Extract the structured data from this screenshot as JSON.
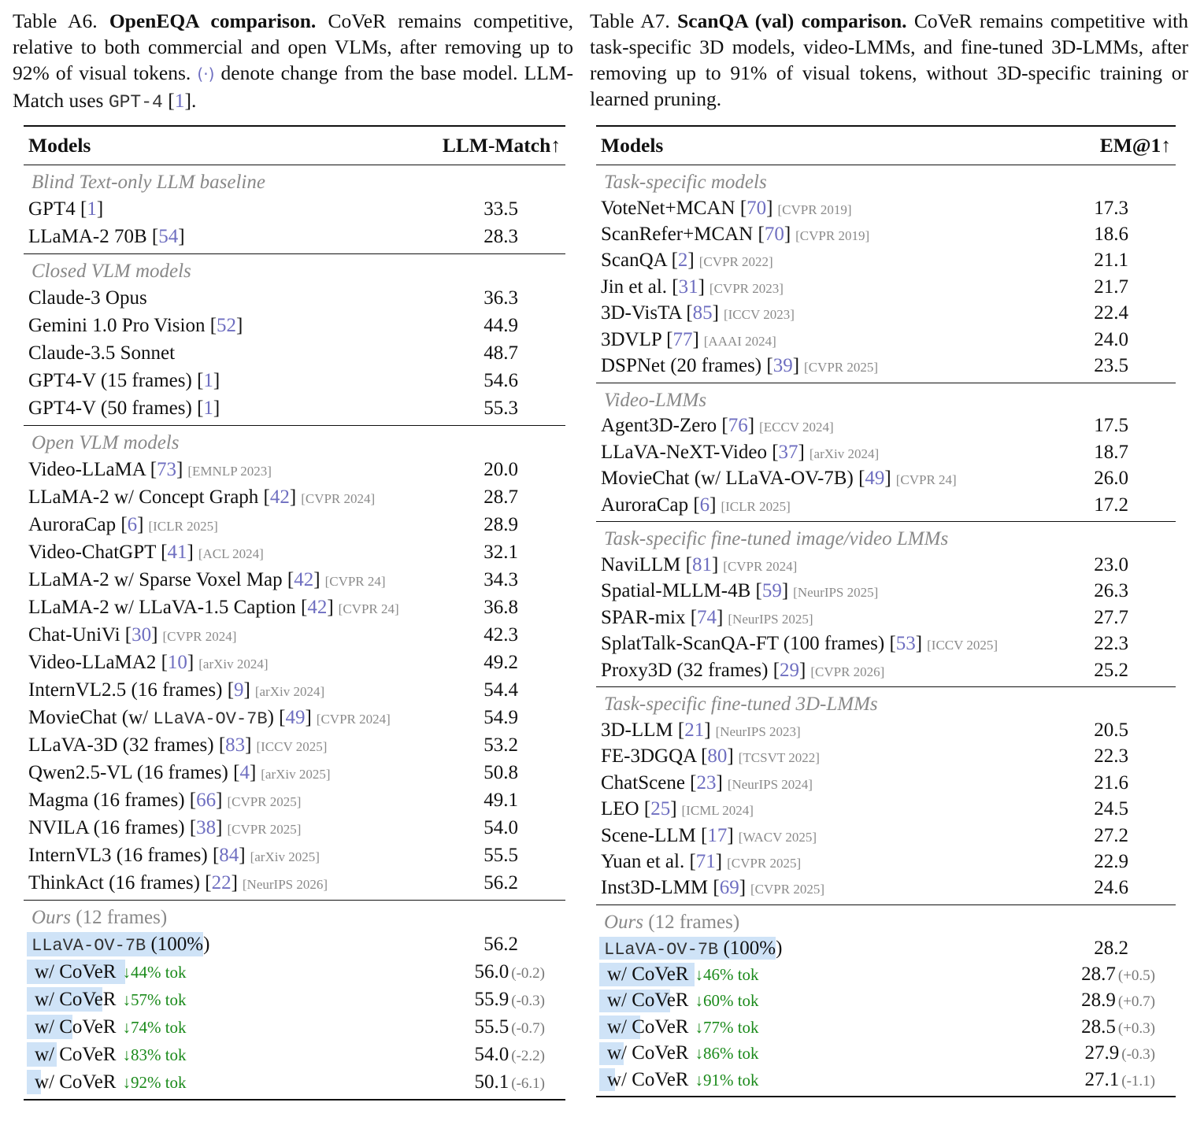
{
  "table_a6": {
    "caption": {
      "label": "Table A6.",
      "title": "OpenEQA comparison.",
      "text1": " CoVeR remains competitive, relative to both commercial and open VLMs, after removing up to 92% of visual tokens. ",
      "symbol": "(·)",
      "text2": " denote change from the base model. LLM-Match uses ",
      "mono": "GPT-4",
      "cite_open": " [",
      "cite": "1",
      "cite_close": "]."
    },
    "header": {
      "models": "Models",
      "metric": "LLM-Match↑"
    },
    "groups": [
      {
        "title": "Blind Text-only LLM baseline",
        "rows": [
          {
            "name": "GPT4 ",
            "cite": "1",
            "venue": "",
            "value": "33.5"
          },
          {
            "name": "LLaMA-2 70B ",
            "cite": "54",
            "venue": "",
            "value": "28.3"
          }
        ]
      },
      {
        "title": "Closed VLM models",
        "rows": [
          {
            "name": "Claude-3 Opus",
            "cite": "",
            "venue": "",
            "value": "36.3"
          },
          {
            "name": "Gemini 1.0 Pro Vision ",
            "cite": "52",
            "venue": "",
            "value": "44.9"
          },
          {
            "name": "Claude-3.5 Sonnet",
            "cite": "",
            "venue": "",
            "value": "48.7"
          },
          {
            "name": "GPT4-V (15 frames) ",
            "cite": "1",
            "venue": "",
            "value": "54.6"
          },
          {
            "name": "GPT4-V (50 frames) ",
            "cite": "1",
            "venue": "",
            "value": "55.3"
          }
        ]
      },
      {
        "title": "Open VLM models",
        "rows": [
          {
            "name": "Video-LLaMA ",
            "cite": "73",
            "venue": "[EMNLP 2023]",
            "value": "20.0"
          },
          {
            "name": "LLaMA-2 w/ Concept Graph ",
            "cite": "42",
            "venue": "[CVPR 2024]",
            "value": "28.7"
          },
          {
            "name": "AuroraCap ",
            "cite": "6",
            "venue": "[ICLR 2025]",
            "value": "28.9"
          },
          {
            "name": "Video-ChatGPT ",
            "cite": "41",
            "venue": "[ACL 2024]",
            "value": "32.1"
          },
          {
            "name": "LLaMA-2 w/ Sparse Voxel Map ",
            "cite": "42",
            "venue": "[CVPR 24]",
            "value": "34.3"
          },
          {
            "name": "LLaMA-2 w/ LLaVA-1.5 Caption ",
            "cite": "42",
            "venue": "[CVPR 24]",
            "value": "36.8"
          },
          {
            "name": "Chat-UniVi ",
            "cite": "30",
            "venue": "[CVPR 2024]",
            "value": "42.3"
          },
          {
            "name": "Video-LLaMA2 ",
            "cite": "10",
            "venue": "[arXiv 2024]",
            "value": "49.2"
          },
          {
            "name": "InternVL2.5 (16 frames) ",
            "cite": "9",
            "venue": "[arXiv 2024]",
            "value": "54.4"
          },
          {
            "name": "MovieChat (w/ ",
            "mono": "LLaVA-OV-7B",
            "name2": ") ",
            "cite": "49",
            "venue": "[CVPR 2024]",
            "value": "54.9"
          },
          {
            "name": "LLaVA-3D (32 frames) ",
            "cite": "83",
            "venue": "[ICCV 2025]",
            "value": "53.2"
          },
          {
            "name": "Qwen2.5-VL (16 frames) ",
            "cite": "4",
            "venue": "[arXiv 2025]",
            "value": "50.8"
          },
          {
            "name": "Magma (16 frames) ",
            "cite": "66",
            "venue": "[CVPR 2025]",
            "value": "49.1"
          },
          {
            "name": "NVILA (16 frames) ",
            "cite": "38",
            "venue": "[CVPR 2025]",
            "value": "54.0"
          },
          {
            "name": "InternVL3 (16 frames) ",
            "cite": "84",
            "venue": "[arXiv 2025]",
            "value": "55.5"
          },
          {
            "name": "ThinkAct (16 frames) ",
            "cite": "22",
            "venue": "[NeurIPS 2026]",
            "value": "56.2"
          }
        ]
      }
    ],
    "ours": {
      "title": "Ours",
      "subtitle": " (12 frames)",
      "base": {
        "mono": "LLaVA-OV-7B",
        "suffix": " (100%)",
        "value": "56.2",
        "retained": 1.0
      },
      "rows": [
        {
          "name": "w/ CoVeR",
          "tok": "↓44% tok",
          "value": "56.0",
          "delta": "(-0.2)",
          "retained": 0.56
        },
        {
          "name": "w/ CoVeR",
          "tok": "↓57% tok",
          "value": "55.9",
          "delta": "(-0.3)",
          "retained": 0.43
        },
        {
          "name": "w/ CoVeR",
          "tok": "↓74% tok",
          "value": "55.5",
          "delta": "(-0.7)",
          "retained": 0.26
        },
        {
          "name": "w/ CoVeR",
          "tok": "↓83% tok",
          "value": "54.0",
          "delta": "(-2.2)",
          "retained": 0.17
        },
        {
          "name": "w/ CoVeR",
          "tok": "↓92% tok",
          "value": "50.1",
          "delta": "(-6.1)",
          "retained": 0.08
        }
      ]
    }
  },
  "table_a7": {
    "caption": {
      "label": "Table A7.",
      "title": "ScanQA (val) comparison.",
      "text1": " CoVeR remains competitive with task-specific 3D models, video-LMMs, and fine-tuned 3D-LMMs, after removing up to 91% of visual tokens, without 3D-specific training or learned pruning."
    },
    "header": {
      "models": "Models",
      "metric": "EM@1↑"
    },
    "groups": [
      {
        "title": "Task-specific models",
        "rows": [
          {
            "name": "VoteNet+MCAN ",
            "cite": "70",
            "venue": "[CVPR 2019]",
            "value": "17.3"
          },
          {
            "name": "ScanRefer+MCAN ",
            "cite": "70",
            "venue": "[CVPR 2019]",
            "value": "18.6"
          },
          {
            "name": "ScanQA ",
            "cite": "2",
            "venue": "[CVPR 2022]",
            "value": "21.1"
          },
          {
            "name": "Jin et al. ",
            "cite": "31",
            "venue": "[CVPR 2023]",
            "value": "21.7"
          },
          {
            "name": "3D-VisTA ",
            "cite": "85",
            "venue": "[ICCV 2023]",
            "value": "22.4"
          },
          {
            "name": "3DVLP  ",
            "cite": "77",
            "venue": "[AAAI 2024]",
            "value": "24.0"
          },
          {
            "name": "DSPNet (20 frames) ",
            "cite": "39",
            "venue": "[CVPR 2025]",
            "value": "23.5"
          }
        ]
      },
      {
        "title": "Video-LMMs",
        "rows": [
          {
            "name": "Agent3D-Zero ",
            "cite": "76",
            "venue": "[ECCV 2024]",
            "value": "17.5"
          },
          {
            "name": "LLaVA-NeXT-Video ",
            "cite": "37",
            "venue": "[arXiv 2024]",
            "value": "18.7"
          },
          {
            "name": "MovieChat (w/ LLaVA-OV-7B) ",
            "cite": "49",
            "venue": "[CVPR 24]",
            "value": "26.0"
          },
          {
            "name": "AuroraCap ",
            "cite": "6",
            "venue": "[ICLR 2025]",
            "value": "17.2"
          }
        ]
      },
      {
        "title": "Task-specific fine-tuned image/video LMMs",
        "rows": [
          {
            "name": "NaviLLM ",
            "cite": "81",
            "venue": "[CVPR 2024]",
            "value": "23.0"
          },
          {
            "name": "Spatial-MLLM-4B ",
            "cite": "59",
            "venue": "[NeurIPS 2025]",
            "value": "26.3"
          },
          {
            "name": "SPAR-mix ",
            "cite": "74",
            "venue": "[NeurIPS 2025]",
            "value": "27.7"
          },
          {
            "name": "SplatTalk-ScanQA-FT (100 frames) ",
            "cite": "53",
            "venue": "[ICCV 2025]",
            "value": "22.3"
          },
          {
            "name": "Proxy3D (32 frames) ",
            "cite": "29",
            "venue": "[CVPR 2026]",
            "value": "25.2"
          }
        ]
      },
      {
        "title": "Task-specific fine-tuned 3D-LMMs",
        "rows": [
          {
            "name": "3D-LLM ",
            "cite": "21",
            "venue": "[NeurIPS 2023]",
            "value": "20.5"
          },
          {
            "name": "FE-3DGQA ",
            "cite": "80",
            "venue": "[TCSVT 2022]",
            "value": "22.3"
          },
          {
            "name": "ChatScene ",
            "cite": "23",
            "venue": "[NeurIPS 2024]",
            "value": "21.6"
          },
          {
            "name": "LEO ",
            "cite": "25",
            "venue": "[ICML 2024]",
            "value": "24.5"
          },
          {
            "name": "Scene-LLM ",
            "cite": "17",
            "venue": "[WACV 2025]",
            "value": "27.2"
          },
          {
            "name": "Yuan et al. ",
            "cite": "71",
            "venue": "[CVPR 2025]",
            "value": "22.9"
          },
          {
            "name": "Inst3D-LMM ",
            "cite": "69",
            "venue": "[CVPR 2025]",
            "value": "24.6"
          }
        ]
      }
    ],
    "ours": {
      "title": "Ours",
      "subtitle": " (12 frames)",
      "base": {
        "mono": "LLaVA-OV-7B",
        "suffix": " (100%)",
        "value": "28.2",
        "retained": 1.0
      },
      "rows": [
        {
          "name": "w/ CoVeR",
          "tok": "↓46% tok",
          "value": "28.7",
          "delta": "(+0.5)",
          "retained": 0.54
        },
        {
          "name": "w/ CoVeR",
          "tok": "↓60% tok",
          "value": "28.9",
          "delta": "(+0.7)",
          "retained": 0.4
        },
        {
          "name": "w/ CoVeR",
          "tok": "↓77% tok",
          "value": "28.5",
          "delta": "(+0.3)",
          "retained": 0.23
        },
        {
          "name": "w/ CoVeR",
          "tok": "↓86% tok",
          "value": "27.9",
          "delta": "(-0.3)",
          "retained": 0.14
        },
        {
          "name": "w/ CoVeR",
          "tok": "↓91% tok",
          "value": "27.1",
          "delta": "(-1.1)",
          "retained": 0.09
        }
      ]
    }
  }
}
